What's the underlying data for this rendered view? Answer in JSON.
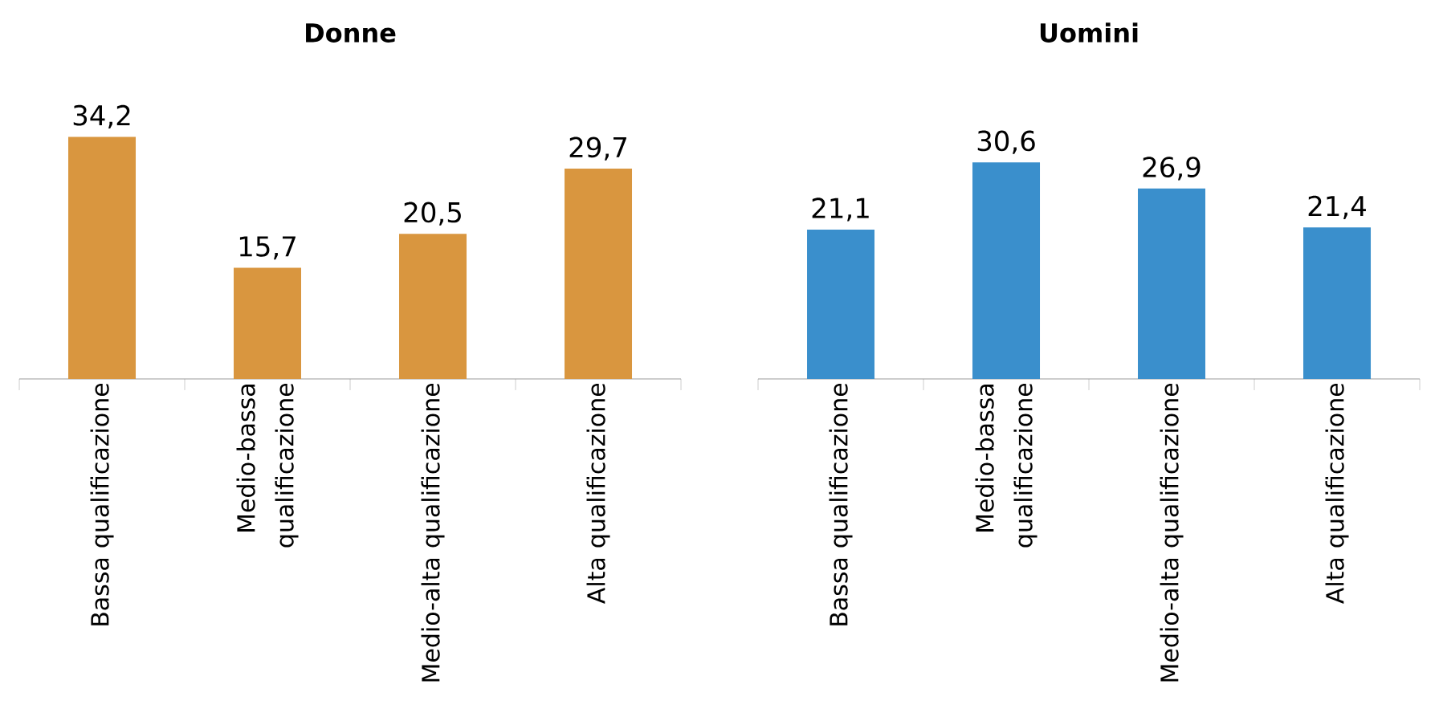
{
  "chart_data": [
    {
      "type": "bar",
      "title": "Donne",
      "categories": [
        "Bassa qualificazione",
        "Medio-bassa qualificazione",
        "Medio-alta qualificazione",
        "Alta qualificazione"
      ],
      "values": [
        34.2,
        15.7,
        20.5,
        29.7
      ],
      "value_labels": [
        "34,2",
        "15,7",
        "20,5",
        "29,7"
      ],
      "color": "#d9963f"
    },
    {
      "type": "bar",
      "title": "Uomini",
      "categories": [
        "Bassa qualificazione",
        "Medio-bassa qualificazione",
        "Medio-alta qualificazione",
        "Alta qualificazione"
      ],
      "values": [
        21.1,
        30.6,
        26.9,
        21.4
      ],
      "value_labels": [
        "21,1",
        "30,6",
        "26,9",
        "21,4"
      ],
      "color": "#3a8fcc"
    }
  ]
}
